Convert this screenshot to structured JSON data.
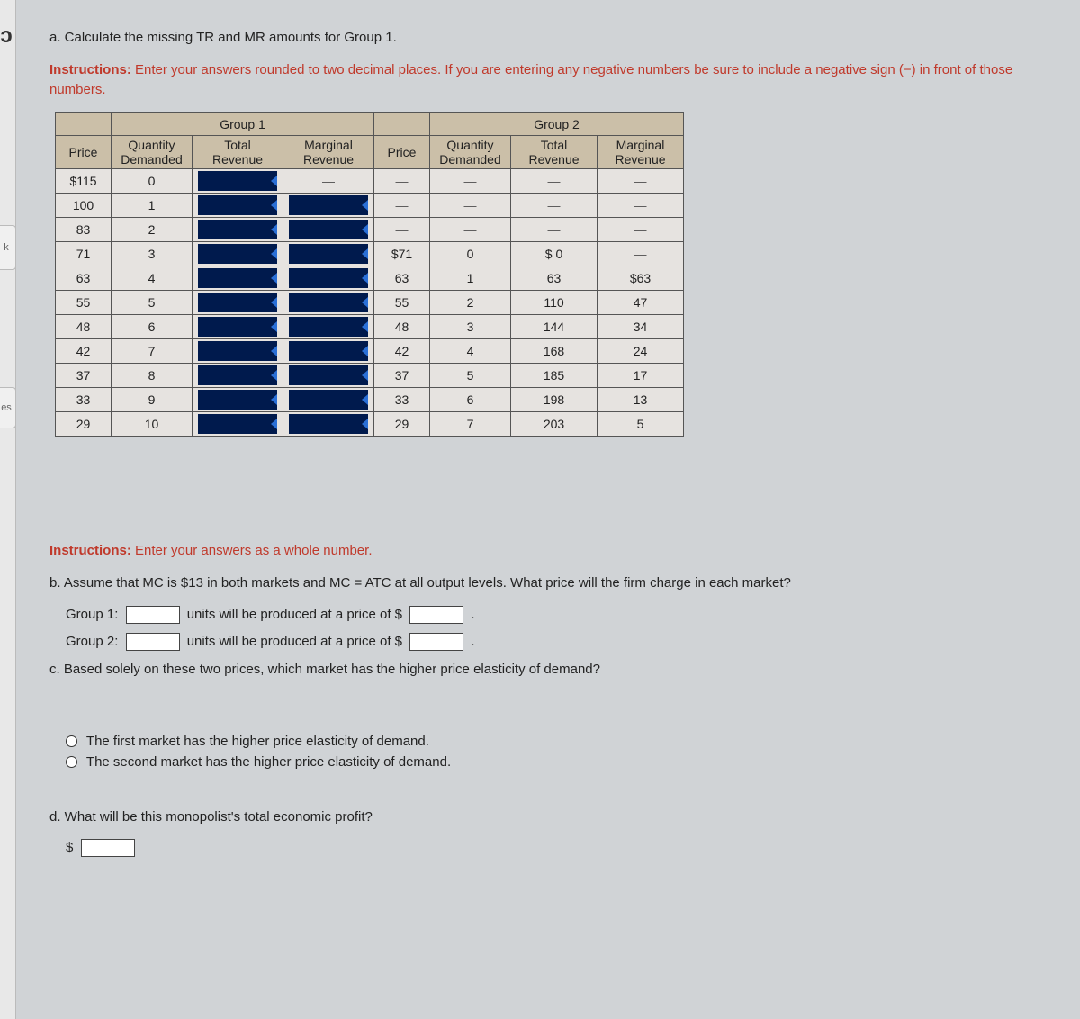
{
  "left_tabs": {
    "top_char": "ɔ",
    "k": "k",
    "es": "es"
  },
  "part_a": {
    "prompt": "a. Calculate the missing TR and MR amounts for Group 1.",
    "instructions_label": "Instructions:",
    "instructions": "Enter your answers rounded to two decimal places. If you are entering any negative numbers be sure to include a negative sign (−) in front of those numbers."
  },
  "table": {
    "group1_title": "Group 1",
    "group2_title": "Group 2",
    "headers": {
      "price": "Price",
      "qd_l1": "Quantity",
      "qd_l2": "Demanded",
      "tr_l1": "Total",
      "tr_l2": "Revenue",
      "mr_l1": "Marginal",
      "mr_l2": "Revenue"
    },
    "rows": [
      {
        "g1_price": "$115",
        "g1_qd": "0",
        "g1_tr_input": true,
        "g1_mr_dash": true,
        "g2_price": "—",
        "g2_qd": "—",
        "g2_tr": "—",
        "g2_mr": "—"
      },
      {
        "g1_price": "100",
        "g1_qd": "1",
        "g1_tr_input": true,
        "g1_mr_input": true,
        "g2_price": "—",
        "g2_qd": "—",
        "g2_tr": "—",
        "g2_mr": "—"
      },
      {
        "g1_price": "83",
        "g1_qd": "2",
        "g1_tr_input": true,
        "g1_mr_input": true,
        "g2_price": "—",
        "g2_qd": "—",
        "g2_tr": "—",
        "g2_mr": "—"
      },
      {
        "g1_price": "71",
        "g1_qd": "3",
        "g1_tr_input": true,
        "g1_mr_input": true,
        "g2_price": "$71",
        "g2_qd": "0",
        "g2_tr": "$ 0",
        "g2_mr": "—"
      },
      {
        "g1_price": "63",
        "g1_qd": "4",
        "g1_tr_input": true,
        "g1_mr_input": true,
        "g2_price": "63",
        "g2_qd": "1",
        "g2_tr": "63",
        "g2_mr": "$63"
      },
      {
        "g1_price": "55",
        "g1_qd": "5",
        "g1_tr_input": true,
        "g1_mr_input": true,
        "g2_price": "55",
        "g2_qd": "2",
        "g2_tr": "110",
        "g2_mr": "47"
      },
      {
        "g1_price": "48",
        "g1_qd": "6",
        "g1_tr_input": true,
        "g1_mr_input": true,
        "g2_price": "48",
        "g2_qd": "3",
        "g2_tr": "144",
        "g2_mr": "34"
      },
      {
        "g1_price": "42",
        "g1_qd": "7",
        "g1_tr_input": true,
        "g1_mr_input": true,
        "g2_price": "42",
        "g2_qd": "4",
        "g2_tr": "168",
        "g2_mr": "24"
      },
      {
        "g1_price": "37",
        "g1_qd": "8",
        "g1_tr_input": true,
        "g1_mr_input": true,
        "g2_price": "37",
        "g2_qd": "5",
        "g2_tr": "185",
        "g2_mr": "17"
      },
      {
        "g1_price": "33",
        "g1_qd": "9",
        "g1_tr_input": true,
        "g1_mr_input": true,
        "g2_price": "33",
        "g2_qd": "6",
        "g2_tr": "198",
        "g2_mr": "13"
      },
      {
        "g1_price": "29",
        "g1_qd": "10",
        "g1_tr_input": true,
        "g1_mr_input": true,
        "g2_price": "29",
        "g2_qd": "7",
        "g2_tr": "203",
        "g2_mr": "5"
      }
    ]
  },
  "part_b": {
    "instructions_label": "Instructions:",
    "instructions": "Enter your answers as a whole number.",
    "prompt": "b. Assume that MC is $13 in both markets and MC = ATC at all output levels. What price will the firm charge in each market?",
    "group1_label": "Group 1:",
    "group2_label": "Group 2:",
    "units_text": "units will be produced at a price of $",
    "period": "."
  },
  "part_c": {
    "prompt": "c. Based solely on these two prices, which market has the higher price elasticity of demand?",
    "option1": "The first market has the higher price elasticity of demand.",
    "option2": "The second market has the higher price elasticity of demand."
  },
  "part_d": {
    "prompt": "d. What will be this monopolist's total economic profit?",
    "dollar": "$"
  }
}
